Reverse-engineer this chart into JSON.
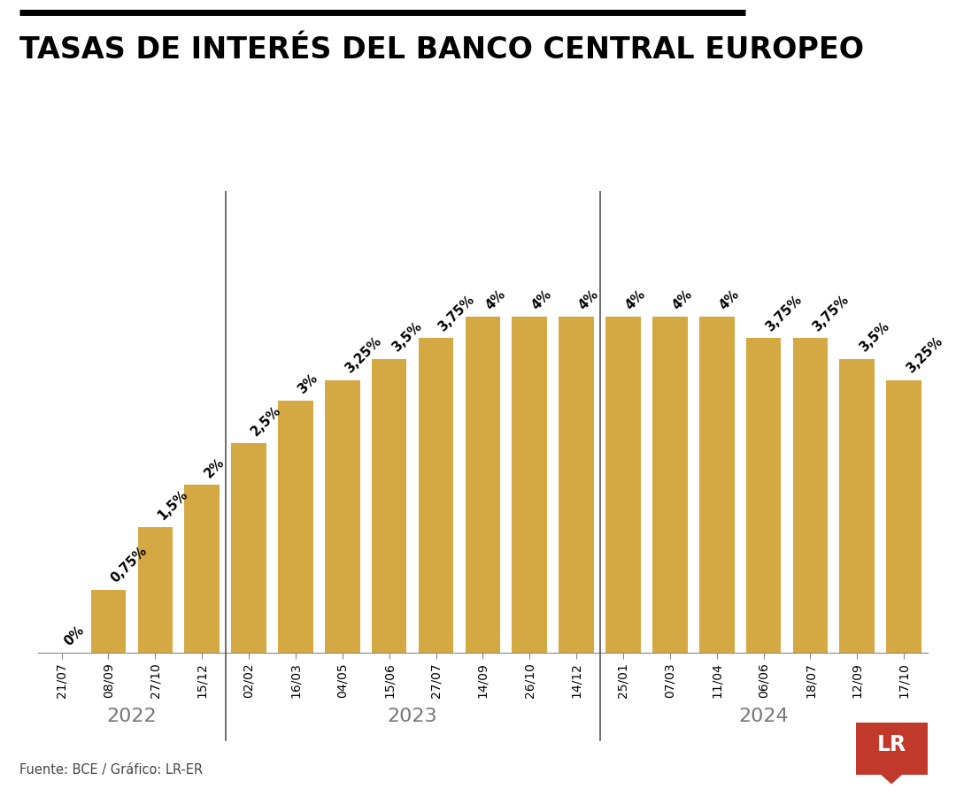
{
  "title": "TASAS DE INTERÉS DEL BANCO CENTRAL EUROPEO",
  "title_bar_color": "#1a1a1a",
  "bar_color": "#D4A843",
  "background_color": "#ffffff",
  "categories": [
    "21/07",
    "08/09",
    "27/10",
    "15/12",
    "02/02",
    "16/03",
    "04/05",
    "15/06",
    "27/07",
    "14/09",
    "26/10",
    "14/12",
    "25/01",
    "07/03",
    "11/04",
    "06/06",
    "18/07",
    "12/09",
    "17/10"
  ],
  "values": [
    0.0,
    0.75,
    1.5,
    2.0,
    2.5,
    3.0,
    3.25,
    3.5,
    3.75,
    4.0,
    4.0,
    4.0,
    4.0,
    4.0,
    4.0,
    3.75,
    3.75,
    3.5,
    3.25
  ],
  "labels": [
    "0%",
    "0,75%",
    "1,5%",
    "2%",
    "2,5%",
    "3%",
    "3,25%",
    "3,5%",
    "3,75%",
    "4%",
    "4%",
    "4%",
    "4%",
    "4%",
    "4%",
    "3,75%",
    "3,75%",
    "3,5%",
    "3,25%"
  ],
  "years": [
    {
      "label": "2022",
      "start": 0,
      "end": 3
    },
    {
      "label": "2023",
      "start": 4,
      "end": 11
    },
    {
      "label": "2024",
      "start": 12,
      "end": 18
    }
  ],
  "dividers": [
    3.5,
    11.5
  ],
  "source_text": "Fuente: BCE / Gráfico: LR-ER",
  "lr_color": "#c0392b",
  "ylim": [
    0,
    5.5
  ]
}
